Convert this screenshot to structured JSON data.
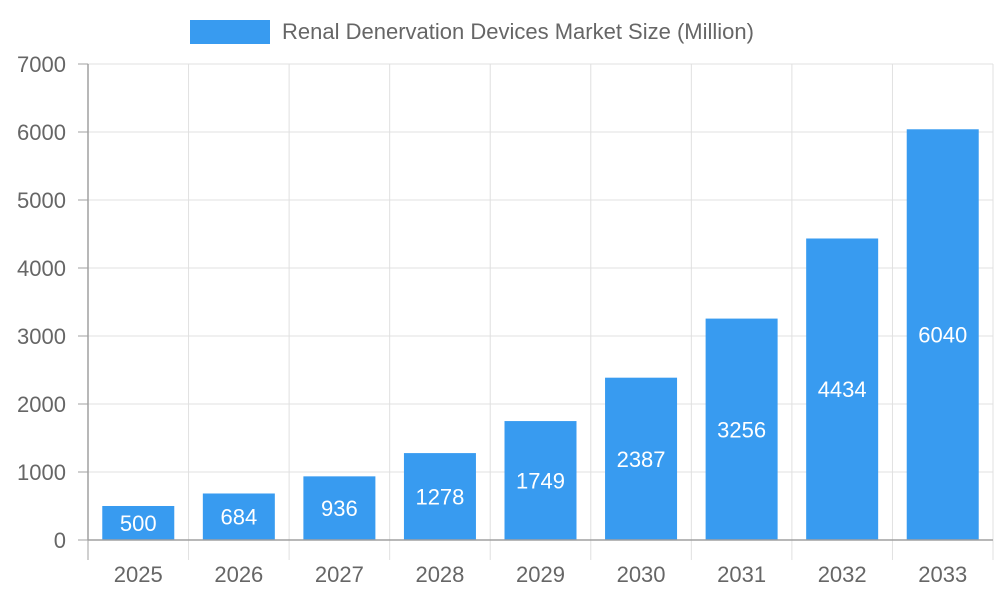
{
  "chart_data": {
    "type": "bar",
    "title": "",
    "xlabel": "",
    "ylabel": "",
    "categories": [
      "2025",
      "2026",
      "2027",
      "2028",
      "2029",
      "2030",
      "2031",
      "2032",
      "2033"
    ],
    "series": [
      {
        "name": "Renal Denervation Devices Market Size (Million)",
        "values": [
          500,
          684,
          936,
          1278,
          1749,
          2387,
          3256,
          4434,
          6040
        ]
      }
    ],
    "ylim": [
      0,
      7000
    ],
    "yticks": [
      0,
      1000,
      2000,
      3000,
      4000,
      5000,
      6000,
      7000
    ],
    "grid": true,
    "legend": "top-center",
    "data_labels": "inside-bar",
    "colors": {
      "bar": "#389BF0",
      "grid": "#E0E0E0",
      "axis": "#A0A0A0",
      "text": "#666666",
      "label": "#FFFFFF"
    }
  }
}
